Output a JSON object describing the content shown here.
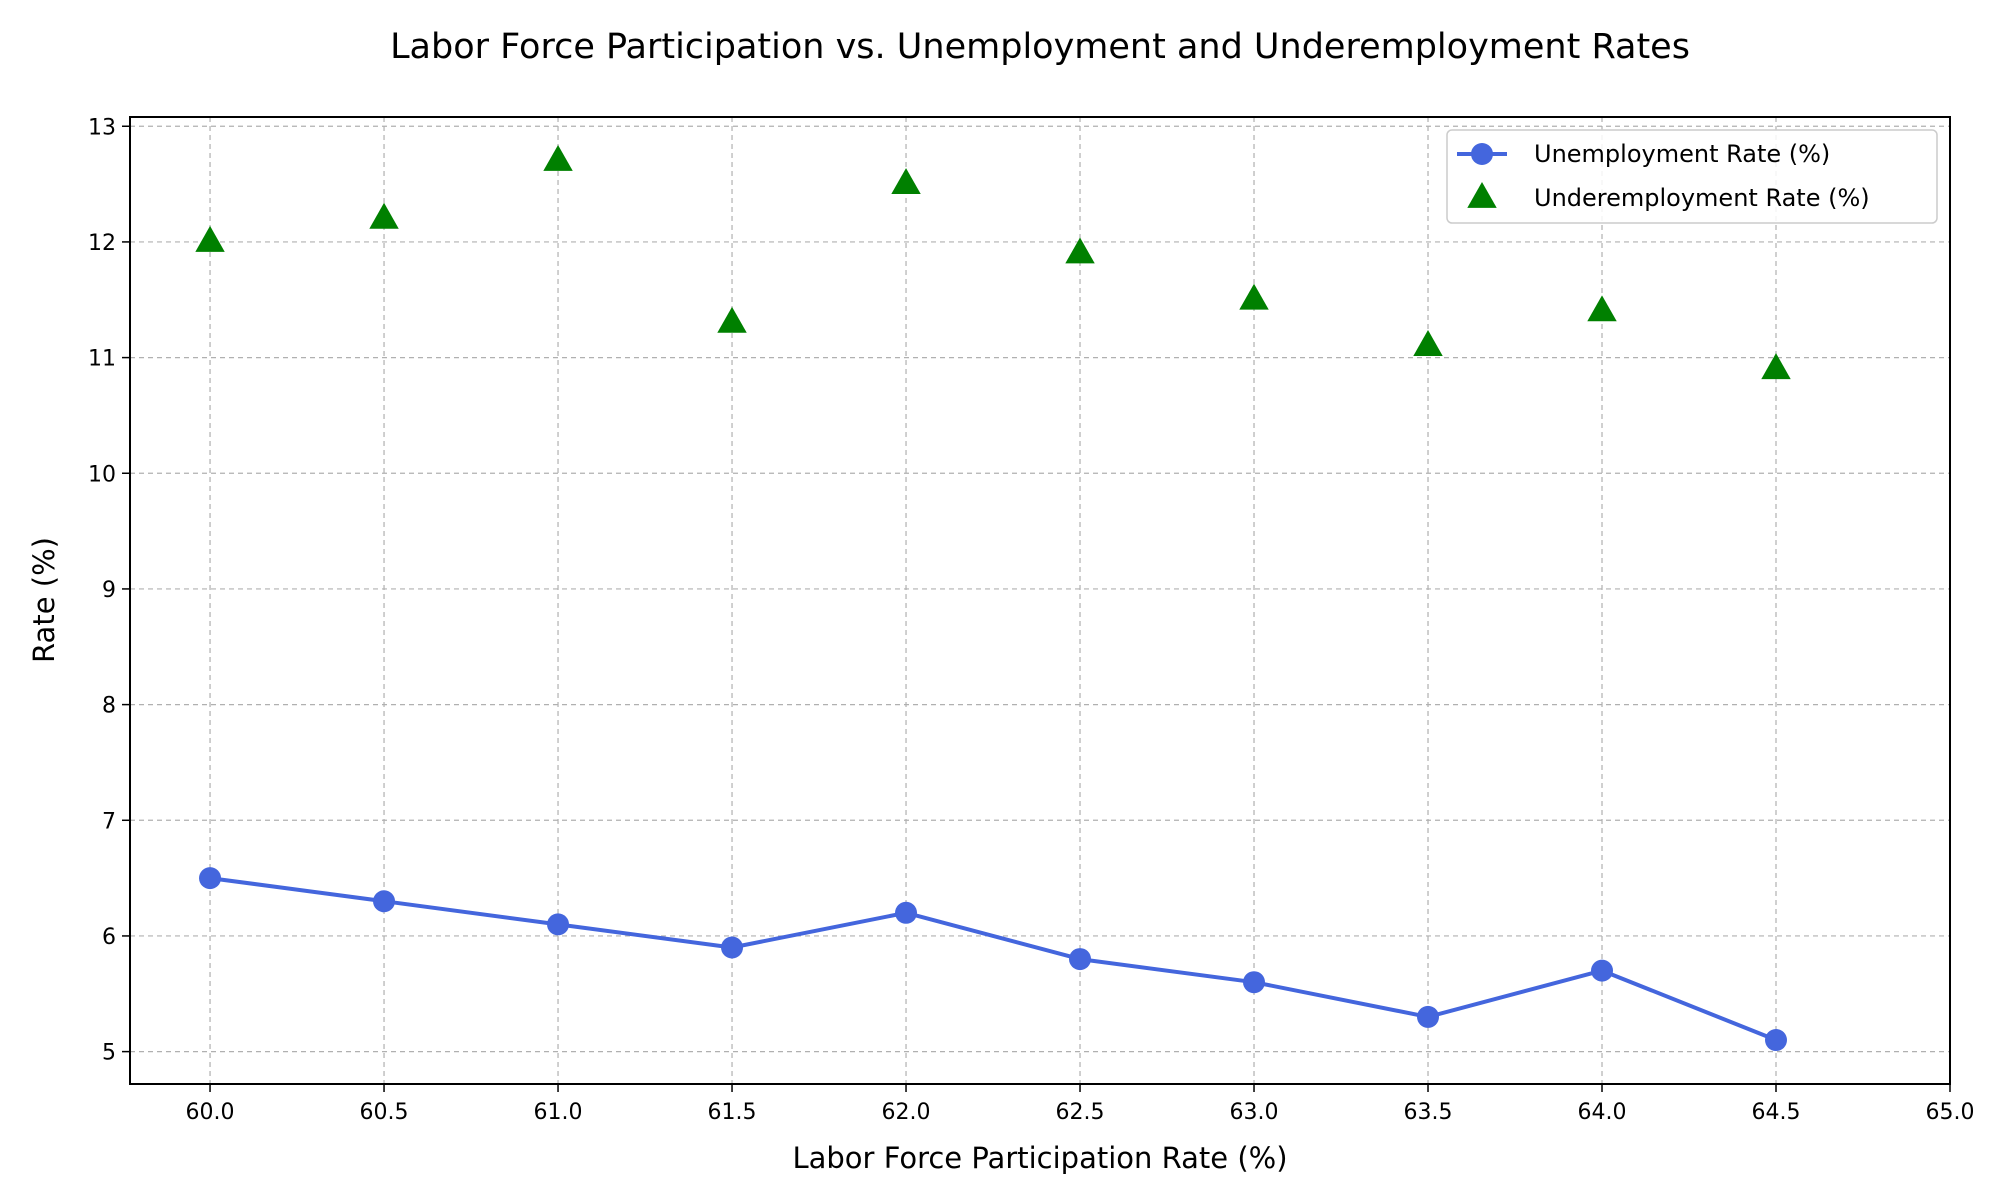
{
  "chart_data": {
    "type": "line",
    "title": "Labor Force Participation vs. Unemployment and Underemployment Rates",
    "xlabel": "Labor Force Participation Rate (%)",
    "ylabel": "Rate (%)",
    "xlim": [
      59.77,
      65.0
    ],
    "ylim": [
      4.72,
      13.08
    ],
    "x_ticks": [
      "60.0",
      "60.5",
      "61.0",
      "61.5",
      "62.0",
      "62.5",
      "63.0",
      "63.5",
      "64.0",
      "64.5",
      "65.0"
    ],
    "y_ticks": [
      "5",
      "6",
      "7",
      "8",
      "9",
      "10",
      "11",
      "12",
      "13"
    ],
    "x": [
      60.0,
      60.5,
      61.0,
      61.5,
      62.0,
      62.5,
      63.0,
      63.5,
      64.0,
      64.5
    ],
    "grid": true,
    "legend_position": "top-right",
    "series": [
      {
        "name": "Unemployment Rate (%)",
        "style": "line-with-circle-markers",
        "color": "#4466dd",
        "values": [
          6.5,
          6.3,
          6.1,
          5.9,
          6.2,
          5.8,
          5.6,
          5.3,
          5.7,
          5.1
        ]
      },
      {
        "name": "Underemployment Rate (%)",
        "style": "triangle-markers",
        "color": "#008000",
        "values": [
          12.0,
          12.2,
          12.7,
          11.3,
          12.5,
          11.9,
          11.5,
          11.1,
          11.4,
          10.9
        ]
      }
    ]
  }
}
